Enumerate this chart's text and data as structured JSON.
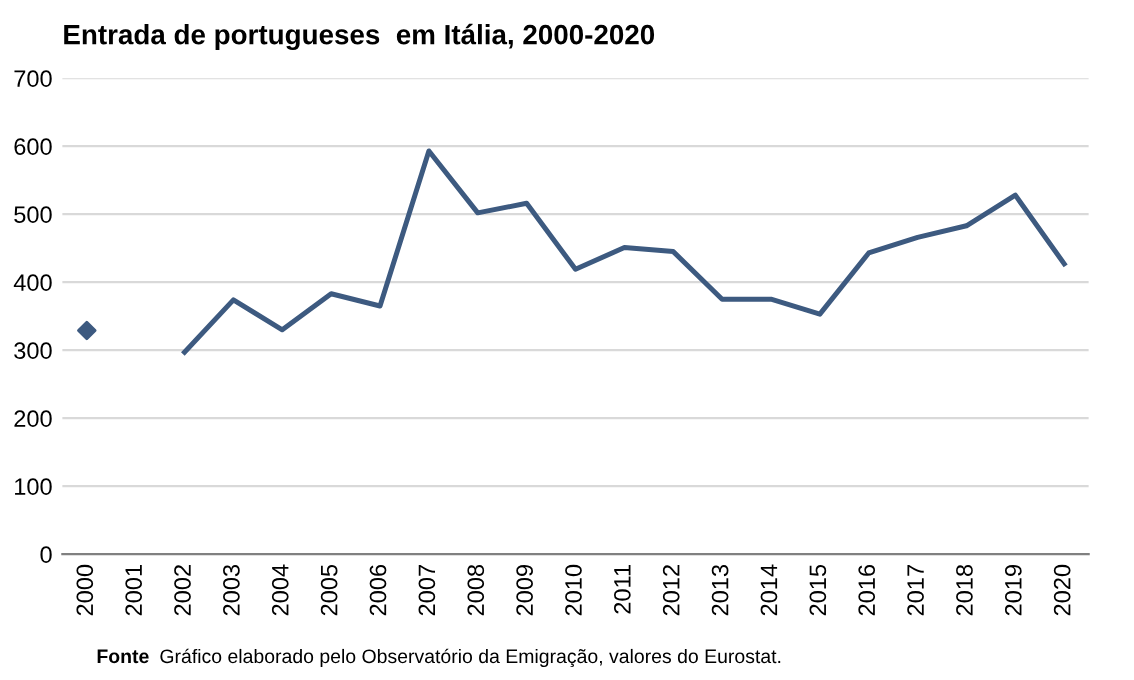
{
  "chart_data": {
    "type": "line",
    "title": "Entrada de portugueses  em Itália, 2000-2020",
    "categories": [
      "2000",
      "2001",
      "2002",
      "2003",
      "2004",
      "2005",
      "2006",
      "2007",
      "2008",
      "2009",
      "2010",
      "2011",
      "2012",
      "2013",
      "2014",
      "2015",
      "2016",
      "2017",
      "2018",
      "2019",
      "2020"
    ],
    "series": [
      {
        "type": "scatter",
        "marker": "diamond",
        "color": "#3d5a80",
        "values": [
          329,
          null,
          null,
          null,
          null,
          null,
          null,
          null,
          null,
          null,
          null,
          null,
          null,
          null,
          null,
          null,
          null,
          null,
          null,
          null,
          null
        ]
      },
      {
        "color": "#3d5a80",
        "values": [
          null,
          null,
          297,
          374,
          330,
          383,
          365,
          593,
          502,
          516,
          419,
          451,
          445,
          375,
          375,
          353,
          443,
          466,
          483,
          528,
          427
        ]
      }
    ],
    "ylim": [
      0,
      700
    ],
    "yticks": [
      0,
      100,
      200,
      300,
      400,
      500,
      600,
      700
    ],
    "grid": "y",
    "line_style": "solid",
    "annotations": [
      "Fonte",
      "Gráfico elaborado pelo Observatório da Emigração, valores do Eurostat."
    ]
  }
}
